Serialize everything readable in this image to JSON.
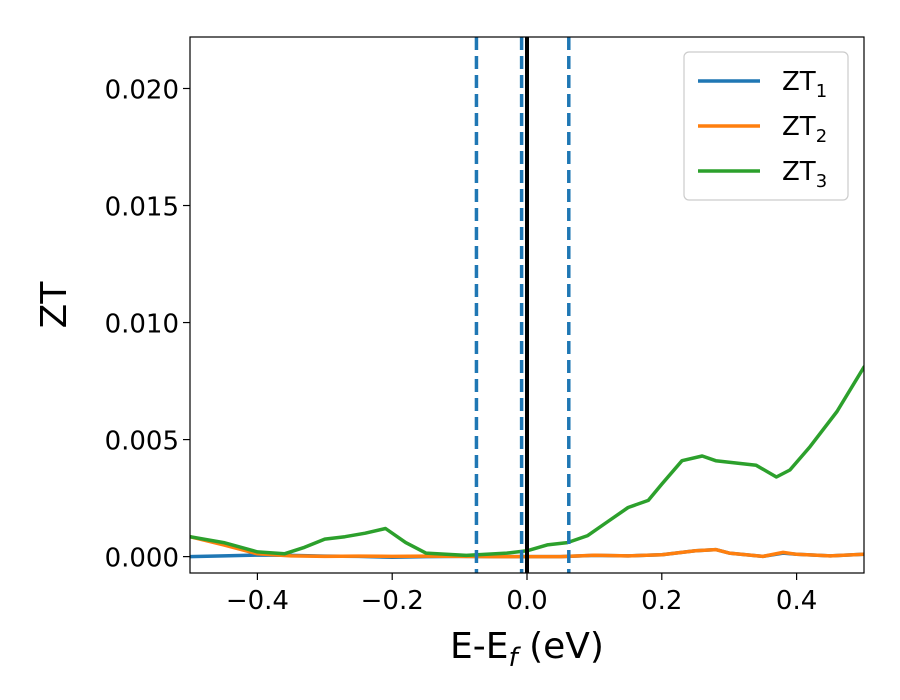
{
  "chart_data": {
    "type": "line",
    "title": "",
    "xlabel": "E-E",
    "xlabel_sub": "f",
    "xlabel_unit": " (eV)",
    "ylabel": "ZT",
    "xlim": [
      -0.5,
      0.5
    ],
    "ylim": [
      -0.0007,
      0.0222
    ],
    "xticks": [
      -0.4,
      -0.2,
      0.0,
      0.2,
      0.4
    ],
    "xtick_labels": [
      "−0.4",
      "−0.2",
      "0.0",
      "0.2",
      "0.4"
    ],
    "yticks": [
      0.0,
      0.005,
      0.01,
      0.015,
      0.02
    ],
    "ytick_labels": [
      "0.000",
      "0.005",
      "0.010",
      "0.015",
      "0.020"
    ],
    "grid": false,
    "legend_position": "top-right",
    "vlines": [
      {
        "x": -0.075,
        "style": "dashed",
        "color": "#1f77b4"
      },
      {
        "x": -0.008,
        "style": "dashed",
        "color": "#1f77b4"
      },
      {
        "x": 0.0,
        "style": "solid",
        "color": "#000000"
      },
      {
        "x": 0.062,
        "style": "dashed",
        "color": "#1f77b4"
      }
    ],
    "series": [
      {
        "name": "ZT",
        "sub": "1",
        "color": "#1f77b4",
        "x": [
          -0.5,
          -0.45,
          -0.4,
          -0.35,
          -0.3,
          -0.25,
          -0.2,
          -0.15,
          -0.1,
          -0.05,
          0.0,
          0.05,
          0.1,
          0.15,
          0.2,
          0.25,
          0.28,
          0.3,
          0.35,
          0.38,
          0.4,
          0.45,
          0.5
        ],
        "y": [
          0.0,
          3e-05,
          7e-05,
          5e-05,
          2e-05,
          1e-05,
          -3e-05,
          0.0,
          1e-05,
          0.0,
          0.0,
          0.0,
          5e-05,
          3e-05,
          8e-05,
          0.00025,
          0.0003,
          0.00015,
          1e-05,
          0.00015,
          0.0001,
          3e-05,
          0.0001
        ]
      },
      {
        "name": "ZT",
        "sub": "2",
        "color": "#ff7f0e",
        "x": [
          -0.5,
          -0.45,
          -0.4,
          -0.35,
          -0.3,
          -0.25,
          -0.2,
          -0.15,
          -0.1,
          -0.05,
          0.0,
          0.05,
          0.1,
          0.15,
          0.2,
          0.25,
          0.28,
          0.3,
          0.35,
          0.38,
          0.4,
          0.45,
          0.5
        ],
        "y": [
          0.00085,
          0.0005,
          0.00012,
          3e-05,
          1e-05,
          2e-05,
          1e-05,
          2e-05,
          1e-05,
          0.0,
          0.0,
          0.0,
          6e-05,
          3e-05,
          8e-05,
          0.00025,
          0.0003,
          0.00015,
          1e-05,
          0.00018,
          0.0001,
          3e-05,
          0.0001
        ]
      },
      {
        "name": "ZT",
        "sub": "3",
        "color": "#2ca02c",
        "x": [
          -0.5,
          -0.45,
          -0.4,
          -0.36,
          -0.33,
          -0.3,
          -0.27,
          -0.24,
          -0.21,
          -0.18,
          -0.15,
          -0.12,
          -0.09,
          -0.06,
          -0.03,
          0.0,
          0.03,
          0.06,
          0.09,
          0.12,
          0.15,
          0.18,
          0.2,
          0.23,
          0.26,
          0.28,
          0.31,
          0.34,
          0.37,
          0.39,
          0.42,
          0.46,
          0.5
        ],
        "y": [
          0.00085,
          0.0006,
          0.0002,
          0.00012,
          0.0004,
          0.00075,
          0.00085,
          0.001,
          0.0012,
          0.0006,
          0.00015,
          0.0001,
          5e-05,
          0.0001,
          0.00015,
          0.00025,
          0.0005,
          0.0006,
          0.0009,
          0.0015,
          0.0021,
          0.0024,
          0.0031,
          0.0041,
          0.0043,
          0.0041,
          0.004,
          0.0039,
          0.0034,
          0.0037,
          0.0047,
          0.0062,
          0.0081
        ]
      }
    ]
  }
}
